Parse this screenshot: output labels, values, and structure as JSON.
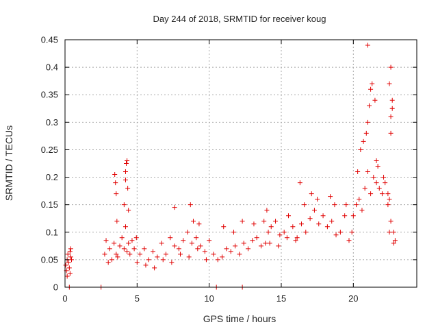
{
  "chart_data": {
    "type": "scatter",
    "title": "Day 244 of 2018, SRMTID for receiver koug",
    "xlabel": "GPS time / hours",
    "ylabel": "SRMTID / TECUs",
    "xlim": [
      0,
      24.4
    ],
    "ylim": [
      0,
      0.45
    ],
    "xticks": [
      0,
      5,
      10,
      15,
      20
    ],
    "xtick_labels": [
      "0",
      "5",
      "10",
      "15",
      "20"
    ],
    "yticks": [
      0,
      0.05,
      0.1,
      0.15,
      0.2,
      0.25,
      0.3,
      0.35,
      0.4,
      0.45
    ],
    "ytick_labels": [
      "0",
      "0.05",
      "0.1",
      "0.15",
      "0.2",
      "0.25",
      "0.3",
      "0.35",
      "0.4",
      "0.45"
    ],
    "grid": true,
    "marker": "+",
    "color": "#e00000",
    "series": [
      {
        "name": "SRMTID",
        "x": [
          0.05,
          0.1,
          0.15,
          0.2,
          0.25,
          0.3,
          0.35,
          0.4,
          0.45,
          0.15,
          0.35,
          0.4,
          2.75,
          2.85,
          3.0,
          3.1,
          3.25,
          3.4,
          3.55,
          3.65,
          3.8,
          3.95,
          4.1,
          4.2,
          4.3,
          4.4,
          4.5,
          4.65,
          4.8,
          4.95,
          3.45,
          3.5,
          3.55,
          3.6,
          4.1,
          4.2,
          4.25,
          4.3,
          4.35,
          4.4,
          4.2,
          5.2,
          5.5,
          5.8,
          6.1,
          6.4,
          6.7,
          7.0,
          7.3,
          7.6,
          7.9,
          8.2,
          8.5,
          8.8,
          9.1,
          9.4,
          9.7,
          10.0,
          10.3,
          5.0,
          5.6,
          6.2,
          6.8,
          7.4,
          8.0,
          8.6,
          9.2,
          9.8,
          7.6,
          8.7,
          8.9,
          9.3,
          10.6,
          10.9,
          11.2,
          11.5,
          11.8,
          12.1,
          12.4,
          12.7,
          13.0,
          13.3,
          13.6,
          13.9,
          11.0,
          11.7,
          12.3,
          13.1,
          13.8,
          14.0,
          14.1,
          14.3,
          14.6,
          14.9,
          15.2,
          15.5,
          15.8,
          16.1,
          16.4,
          16.7,
          14.2,
          14.8,
          15.4,
          16.0,
          16.3,
          16.6,
          17.0,
          17.3,
          17.6,
          17.9,
          18.2,
          18.5,
          18.8,
          19.1,
          19.4,
          19.7,
          19.9,
          17.1,
          17.5,
          18.4,
          18.7,
          19.5,
          20.0,
          20.2,
          20.4,
          20.6,
          20.8,
          21.0,
          21.2,
          21.4,
          21.6,
          21.8,
          22.0,
          22.2,
          22.4,
          22.6,
          22.8,
          20.5,
          20.7,
          20.9,
          21.0,
          21.1,
          21.2,
          21.3,
          21.5,
          21.6,
          21.7,
          22.1,
          22.4,
          22.5,
          22.5,
          22.6,
          22.6,
          22.7,
          22.7,
          22.8,
          22.9,
          22.5,
          22.6,
          21.0,
          20.3,
          0.3,
          2.5,
          10.5,
          12.3
        ],
        "y": [
          0.04,
          0.03,
          0.05,
          0.06,
          0.045,
          0.035,
          0.065,
          0.055,
          0.05,
          0.02,
          0.025,
          0.07,
          0.06,
          0.085,
          0.045,
          0.07,
          0.05,
          0.08,
          0.06,
          0.055,
          0.075,
          0.09,
          0.07,
          0.11,
          0.065,
          0.08,
          0.06,
          0.085,
          0.07,
          0.09,
          0.205,
          0.19,
          0.17,
          0.12,
          0.15,
          0.21,
          0.225,
          0.23,
          0.18,
          0.14,
          0.195,
          0.06,
          0.07,
          0.05,
          0.065,
          0.055,
          0.08,
          0.06,
          0.09,
          0.075,
          0.07,
          0.085,
          0.1,
          0.08,
          0.09,
          0.075,
          0.065,
          0.085,
          0.06,
          0.045,
          0.04,
          0.035,
          0.05,
          0.045,
          0.06,
          0.055,
          0.07,
          0.05,
          0.145,
          0.15,
          0.12,
          0.115,
          0.05,
          0.055,
          0.07,
          0.065,
          0.075,
          0.06,
          0.08,
          0.07,
          0.085,
          0.09,
          0.075,
          0.08,
          0.11,
          0.1,
          0.12,
          0.115,
          0.12,
          0.14,
          0.1,
          0.11,
          0.12,
          0.095,
          0.1,
          0.13,
          0.11,
          0.09,
          0.115,
          0.1,
          0.08,
          0.075,
          0.09,
          0.085,
          0.19,
          0.15,
          0.125,
          0.14,
          0.115,
          0.13,
          0.11,
          0.12,
          0.095,
          0.1,
          0.13,
          0.085,
          0.1,
          0.17,
          0.16,
          0.165,
          0.15,
          0.15,
          0.13,
          0.15,
          0.16,
          0.14,
          0.18,
          0.21,
          0.17,
          0.2,
          0.19,
          0.18,
          0.17,
          0.19,
          0.15,
          0.12,
          0.08,
          0.25,
          0.265,
          0.28,
          0.3,
          0.33,
          0.36,
          0.37,
          0.34,
          0.23,
          0.22,
          0.2,
          0.17,
          0.1,
          0.16,
          0.28,
          0.31,
          0.325,
          0.34,
          0.1,
          0.085,
          0.37,
          0.4,
          0.44,
          0.21,
          0.0,
          0.0,
          0.0,
          0.0
        ]
      }
    ]
  }
}
